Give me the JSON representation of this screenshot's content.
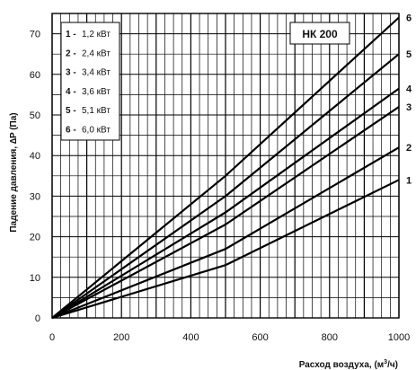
{
  "chart_data": {
    "type": "line",
    "title": "НК 200",
    "xlabel": "Расход воздуха, (м³/ч)",
    "ylabel": "Падение давления, ∆P (Па)",
    "xlim": [
      0,
      1000
    ],
    "ylim": [
      0,
      75
    ],
    "x_ticks": [
      0,
      200,
      400,
      600,
      800,
      1000
    ],
    "y_ticks": [
      0,
      10,
      20,
      30,
      40,
      50,
      60,
      70
    ],
    "grid": true,
    "legend_position": "top-left",
    "legend": [
      {
        "num": "1 -",
        "value": "1,2 кВт"
      },
      {
        "num": "2 -",
        "value": "2,4 кВт"
      },
      {
        "num": "3 -",
        "value": "3,4 кВт"
      },
      {
        "num": "4 -",
        "value": "3,6 кВт"
      },
      {
        "num": "5 -",
        "value": "5,1 кВт"
      },
      {
        "num": "6 -",
        "value": "6,0 кВт"
      }
    ],
    "series": [
      {
        "name": "1",
        "x": [
          0,
          500,
          1000
        ],
        "y": [
          0,
          13,
          34
        ]
      },
      {
        "name": "2",
        "x": [
          0,
          500,
          1000
        ],
        "y": [
          0,
          17,
          42
        ]
      },
      {
        "name": "3",
        "x": [
          0,
          500,
          1000
        ],
        "y": [
          0,
          23,
          52
        ]
      },
      {
        "name": "4",
        "x": [
          0,
          500,
          1000
        ],
        "y": [
          0,
          26,
          56.5
        ]
      },
      {
        "name": "5",
        "x": [
          0,
          500,
          1000
        ],
        "y": [
          0,
          30,
          65
        ]
      },
      {
        "name": "6",
        "x": [
          0,
          500,
          1000
        ],
        "y": [
          0,
          35,
          74
        ]
      }
    ]
  }
}
